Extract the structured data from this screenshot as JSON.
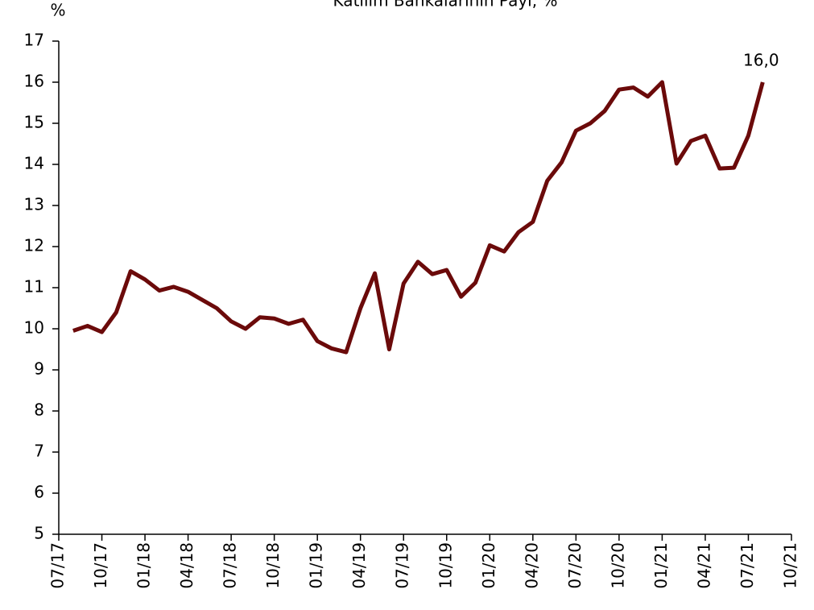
{
  "chart_data": {
    "type": "line",
    "title": "Katılım Bankalarının Payı, %",
    "y_label": "%",
    "x": [
      "08/17",
      "09/17",
      "10/17",
      "11/17",
      "12/17",
      "01/18",
      "02/18",
      "03/18",
      "04/18",
      "05/18",
      "06/18",
      "07/18",
      "08/18",
      "09/18",
      "10/18",
      "11/18",
      "12/18",
      "01/19",
      "02/19",
      "03/19",
      "04/19",
      "05/19",
      "06/19",
      "07/19",
      "08/19",
      "09/19",
      "10/19",
      "11/19",
      "12/19",
      "01/20",
      "02/20",
      "03/20",
      "04/20",
      "05/20",
      "06/20",
      "07/20",
      "08/20",
      "09/20",
      "10/20",
      "11/20",
      "12/20",
      "01/21",
      "02/21",
      "03/21",
      "04/21",
      "05/21",
      "06/21",
      "07/21",
      "08/21"
    ],
    "series": [
      {
        "name": "Katılım Bankalarının Payı",
        "color": "#6b0a0a",
        "values": [
          9.95,
          10.07,
          9.92,
          10.4,
          11.4,
          11.2,
          10.93,
          11.02,
          10.9,
          10.7,
          10.5,
          10.18,
          10.0,
          10.28,
          10.25,
          10.12,
          10.22,
          9.7,
          9.52,
          9.43,
          10.5,
          11.35,
          9.5,
          11.1,
          11.63,
          11.33,
          11.43,
          10.78,
          11.12,
          12.03,
          11.88,
          12.35,
          12.6,
          13.6,
          14.05,
          14.82,
          15.0,
          15.3,
          15.82,
          15.87,
          15.65,
          16.0,
          14.02,
          14.57,
          14.7,
          13.9,
          13.92,
          14.7,
          16.0
        ],
        "value_labels": [
          null,
          null,
          null,
          null,
          null,
          null,
          null,
          null,
          null,
          null,
          null,
          null,
          null,
          null,
          null,
          null,
          null,
          null,
          null,
          null,
          null,
          null,
          null,
          null,
          null,
          null,
          null,
          null,
          null,
          null,
          null,
          null,
          null,
          null,
          null,
          null,
          null,
          null,
          null,
          null,
          null,
          null,
          null,
          null,
          null,
          null,
          null,
          null,
          "16,0"
        ]
      }
    ],
    "xticks": [
      "07/17",
      "10/17",
      "01/18",
      "04/18",
      "07/18",
      "10/18",
      "01/19",
      "04/19",
      "07/19",
      "10/19",
      "01/20",
      "04/20",
      "07/20",
      "10/20",
      "01/21",
      "04/21",
      "07/21",
      "10/21"
    ],
    "ylim": [
      5,
      17
    ],
    "yticks": [
      5,
      6,
      7,
      8,
      9,
      10,
      11,
      12,
      13,
      14,
      15,
      16,
      17
    ],
    "grid": false
  }
}
